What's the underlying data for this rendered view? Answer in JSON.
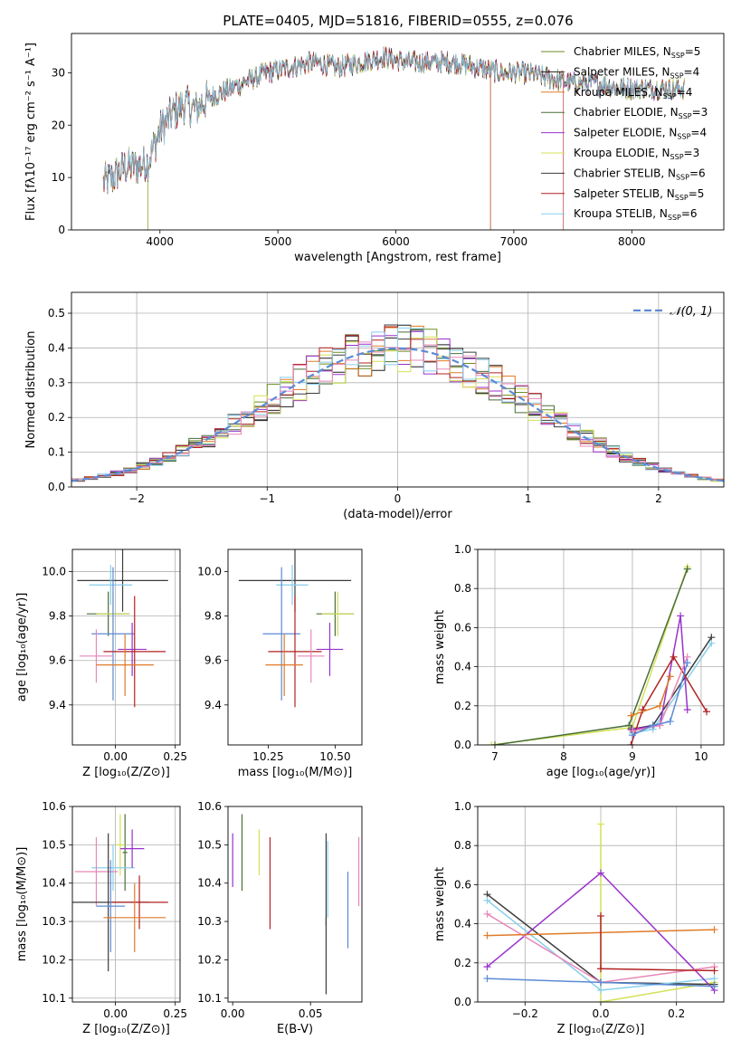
{
  "figure_title": "PLATE=0405, MJD=51816, FIBERID=0555, z=0.076",
  "models": [
    {
      "name": "Chabrier MILES",
      "n": "5",
      "color": "#6b8e23"
    },
    {
      "name": "Salpeter MILES",
      "n": "4",
      "color": "#1f1f1f"
    },
    {
      "name": "Kroupa MILES",
      "n": "4",
      "color": "#e07b28"
    },
    {
      "name": "Chabrier ELODIE",
      "n": "3",
      "color": "#4a6f3a"
    },
    {
      "name": "Salpeter ELODIE",
      "n": "4",
      "color": "#9932cc"
    },
    {
      "name": "Kroupa ELODIE",
      "n": "3",
      "color": "#d4e157"
    },
    {
      "name": "Chabrier STELIB",
      "n": "6",
      "color": "#3c3c3c"
    },
    {
      "name": "Salpeter STELIB",
      "n": "5",
      "color": "#b22222"
    },
    {
      "name": "Kroupa STELIB",
      "n": "6",
      "color": "#87ceeb"
    }
  ],
  "chart_data": [
    {
      "id": "spectrum",
      "type": "line",
      "xlabel": "wavelength [Angstrom, rest frame]",
      "ylabel": "Flux [fλ10⁻¹⁷ erg cm⁻² s⁻¹ A⁻¹]",
      "xlim": [
        3250,
        8780
      ],
      "ylim": [
        0,
        37.5
      ],
      "xticks": [
        4000,
        5000,
        6000,
        7000,
        8000
      ],
      "yticks": [
        0,
        10,
        20,
        30
      ],
      "continuum": {
        "x": [
          3520,
          3600,
          3700,
          3800,
          3900,
          4000,
          4100,
          4200,
          4300,
          4400,
          4500,
          4700,
          4900,
          5100,
          5300,
          5500,
          5700,
          5900,
          6100,
          6300,
          6500,
          6700,
          6900,
          7100,
          7300,
          7500,
          7700,
          7900,
          8100,
          8300,
          8450
        ],
        "y": [
          9,
          10,
          12,
          12,
          13,
          19,
          22,
          24,
          23,
          25,
          26,
          28,
          30,
          31,
          32,
          31,
          32,
          33,
          32,
          32,
          32,
          31,
          30,
          30,
          29,
          28,
          28,
          27,
          27,
          27,
          27
        ]
      },
      "noise_amplitude": {
        "blue": 3.5,
        "red": 1.8
      },
      "dropouts": [
        {
          "model": "Salpeter MILES",
          "x": 3900
        },
        {
          "model": "Kroupa ELODIE",
          "x": 3900
        },
        {
          "model": "Salpeter STELIB",
          "x": 6800
        },
        {
          "model": "Kroupa ELODIE",
          "x": 6800
        },
        {
          "model": "Salpeter STELIB",
          "x": 7420
        }
      ],
      "legend_location": "upper right"
    },
    {
      "id": "residuals",
      "type": "step",
      "xlabel": "(data-model)/error",
      "ylabel": "Normed distribution",
      "xlim": [
        -2.5,
        2.5
      ],
      "ylim": [
        0,
        0.56
      ],
      "xticks": [
        -2,
        -1,
        0,
        1,
        2
      ],
      "yticks": [
        0.0,
        0.1,
        0.2,
        0.3,
        0.4,
        0.5
      ],
      "reference_label": "𝒩(0, 1)",
      "reference_color": "#5b8bd6",
      "bin_width": 0.1,
      "legend_location": "upper right"
    },
    {
      "id": "age-vs-Z",
      "type": "errorbar",
      "xlabel": "Z [log₁₀(Z/Z⊙)]",
      "ylabel": "age  [log₁₀(age/yr)]",
      "xlim": [
        -0.18,
        0.27
      ],
      "ylim": [
        9.22,
        10.1
      ],
      "xticks": [
        0.0,
        0.25
      ],
      "yticks": [
        9.4,
        9.6,
        9.8,
        10.0
      ],
      "points": [
        {
          "color": "#3c3c3c",
          "x": 0.03,
          "xerr": 0.19,
          "y": 9.96,
          "yerr": 0.14
        },
        {
          "color": "#87ceeb",
          "x": -0.02,
          "xerr": 0.09,
          "y": 9.94,
          "yerr": 0.09
        },
        {
          "color": "#4a6f3a",
          "x": -0.03,
          "xerr": 0.09,
          "y": 9.81,
          "yerr": 0.1
        },
        {
          "color": "#d4e157",
          "x": -0.01,
          "xerr": 0.07,
          "y": 9.81,
          "yerr": 0.1
        },
        {
          "color": "#5b8bd6",
          "x": -0.01,
          "xerr": 0.09,
          "y": 9.72,
          "yerr": 0.3
        },
        {
          "color": "#9932cc",
          "x": 0.07,
          "xerr": 0.06,
          "y": 9.65,
          "yerr": 0.12
        },
        {
          "color": "#b22222",
          "x": 0.08,
          "xerr": 0.13,
          "y": 9.64,
          "yerr": 0.25
        },
        {
          "color": "#e887b8",
          "x": -0.08,
          "xerr": 0.07,
          "y": 9.62,
          "yerr": 0.12
        },
        {
          "color": "#e07b28",
          "x": 0.04,
          "xerr": 0.12,
          "y": 9.58,
          "yerr": 0.14
        }
      ]
    },
    {
      "id": "age-vs-mass",
      "type": "errorbar",
      "xlabel": "mass [log₁₀(M/M⊙)]",
      "ylabel": "",
      "xlim": [
        10.1,
        10.6
      ],
      "ylim": [
        9.22,
        10.1
      ],
      "xticks": [
        10.25,
        10.5
      ],
      "yticks": [
        9.4,
        9.6,
        9.8,
        10.0
      ],
      "points": [
        {
          "color": "#3c3c3c",
          "x": 10.35,
          "xerr": 0.21,
          "y": 9.96,
          "yerr": 0.14
        },
        {
          "color": "#87ceeb",
          "x": 10.34,
          "xerr": 0.06,
          "y": 9.94,
          "yerr": 0.09
        },
        {
          "color": "#4a6f3a",
          "x": 10.5,
          "xerr": 0.07,
          "y": 9.81,
          "yerr": 0.1
        },
        {
          "color": "#d4e157",
          "x": 10.51,
          "xerr": 0.06,
          "y": 9.81,
          "yerr": 0.1
        },
        {
          "color": "#5b8bd6",
          "x": 10.3,
          "xerr": 0.07,
          "y": 9.72,
          "yerr": 0.3
        },
        {
          "color": "#9932cc",
          "x": 10.48,
          "xerr": 0.05,
          "y": 9.65,
          "yerr": 0.12
        },
        {
          "color": "#b22222",
          "x": 10.35,
          "xerr": 0.1,
          "y": 9.64,
          "yerr": 0.25
        },
        {
          "color": "#e887b8",
          "x": 10.41,
          "xerr": 0.05,
          "y": 9.62,
          "yerr": 0.12
        },
        {
          "color": "#e07b28",
          "x": 10.31,
          "xerr": 0.07,
          "y": 9.58,
          "yerr": 0.14
        }
      ]
    },
    {
      "id": "weight-vs-age",
      "type": "line",
      "xlabel": "age  [log₁₀(age/yr)]",
      "ylabel": "mass weight",
      "xlim": [
        6.75,
        10.33
      ],
      "ylim": [
        0,
        1.0
      ],
      "xticks": [
        7,
        8,
        9,
        10
      ],
      "yticks": [
        0.0,
        0.2,
        0.4,
        0.6,
        0.8,
        1.0
      ],
      "series": [
        {
          "color": "#d4e157",
          "x": [
            6.95,
            9.0,
            9.8
          ],
          "y": [
            0.0,
            0.09,
            0.91
          ]
        },
        {
          "color": "#4a6f3a",
          "x": [
            7.0,
            8.95,
            9.8
          ],
          "y": [
            0.0,
            0.1,
            0.9
          ]
        },
        {
          "color": "#3c3c3c",
          "x": [
            8.98,
            9.3,
            10.15
          ],
          "y": [
            0.08,
            0.1,
            0.55
          ]
        },
        {
          "color": "#87ceeb",
          "x": [
            9.0,
            9.3,
            10.15
          ],
          "y": [
            0.06,
            0.08,
            0.52
          ]
        },
        {
          "color": "#9932cc",
          "x": [
            9.0,
            9.4,
            9.7,
            9.8
          ],
          "y": [
            0.08,
            0.1,
            0.66,
            0.18
          ]
        },
        {
          "color": "#b22222",
          "x": [
            8.98,
            9.15,
            9.6,
            10.08
          ],
          "y": [
            0.0,
            0.18,
            0.45,
            0.17
          ]
        },
        {
          "color": "#e07b28",
          "x": [
            8.98,
            9.4,
            9.55
          ],
          "y": [
            0.15,
            0.2,
            0.35
          ]
        },
        {
          "color": "#e887b8",
          "x": [
            9.0,
            9.4,
            9.8
          ],
          "y": [
            0.07,
            0.1,
            0.45
          ]
        },
        {
          "color": "#5b8bd6",
          "x": [
            9.0,
            9.3,
            9.55,
            9.8
          ],
          "y": [
            0.05,
            0.1,
            0.12,
            0.42
          ]
        }
      ]
    },
    {
      "id": "mass-vs-Z",
      "type": "errorbar",
      "xlabel": "Z [log₁₀(Z/Z⊙)]",
      "ylabel": "mass [log₁₀(M/M⊙)]",
      "xlim": [
        -0.18,
        0.27
      ],
      "ylim": [
        10.09,
        10.6
      ],
      "xticks": [
        0.0,
        0.25
      ],
      "yticks": [
        10.1,
        10.2,
        10.3,
        10.4,
        10.5,
        10.6
      ],
      "points": [
        {
          "color": "#4a6f3a",
          "x": 0.04,
          "xerr": 0.01,
          "y": 10.48,
          "yerr": 0.1
        },
        {
          "color": "#d4e157",
          "x": 0.02,
          "xerr": 0.02,
          "y": 10.5,
          "yerr": 0.08
        },
        {
          "color": "#87ceeb",
          "x": -0.01,
          "xerr": 0.09,
          "y": 10.44,
          "yerr": 0.06
        },
        {
          "color": "#e887b8",
          "x": -0.08,
          "xerr": 0.09,
          "y": 10.43,
          "yerr": 0.09
        },
        {
          "color": "#9932cc",
          "x": 0.07,
          "xerr": 0.05,
          "y": 10.49,
          "yerr": 0.05
        },
        {
          "color": "#3c3c3c",
          "x": -0.03,
          "xerr": 0.17,
          "y": 10.35,
          "yerr": 0.18
        },
        {
          "color": "#b22222",
          "x": 0.1,
          "xerr": 0.12,
          "y": 10.35,
          "yerr": 0.07
        },
        {
          "color": "#5b8bd6",
          "x": -0.02,
          "xerr": 0.06,
          "y": 10.34,
          "yerr": 0.12
        },
        {
          "color": "#e07b28",
          "x": 0.08,
          "xerr": 0.13,
          "y": 10.31,
          "yerr": 0.09
        }
      ]
    },
    {
      "id": "mass-vs-ebv",
      "type": "errorbar",
      "xlabel": "E(B-V)",
      "ylabel": "",
      "xlim": [
        -0.003,
        0.083
      ],
      "ylim": [
        10.09,
        10.6
      ],
      "xticks": [
        0.0,
        0.05
      ],
      "yticks": [
        10.1,
        10.2,
        10.3,
        10.4,
        10.5,
        10.6
      ],
      "points": [
        {
          "color": "#9932cc",
          "x": 0.0,
          "y": 10.46,
          "yerr": 0.07
        },
        {
          "color": "#4a6f3a",
          "x": 0.006,
          "y": 10.48,
          "yerr": 0.1
        },
        {
          "color": "#d4e157",
          "x": 0.017,
          "y": 10.48,
          "yerr": 0.06
        },
        {
          "color": "#b22222",
          "x": 0.024,
          "y": 10.4,
          "yerr": 0.12
        },
        {
          "color": "#3c3c3c",
          "x": 0.06,
          "y": 10.41,
          "yerr": 0.12
        },
        {
          "color": "#87ceeb",
          "x": 0.061,
          "y": 10.41,
          "yerr": 0.1
        },
        {
          "color": "#3c3c3c",
          "x": 0.06,
          "y": 10.21,
          "yerr": 0.1
        },
        {
          "color": "#5b8bd6",
          "x": 0.074,
          "y": 10.33,
          "yerr": 0.1
        },
        {
          "color": "#e887b8",
          "x": 0.081,
          "y": 10.43,
          "yerr": 0.09
        }
      ]
    },
    {
      "id": "weight-vs-Z",
      "type": "line",
      "xlabel": "Z [log₁₀(Z/Z⊙)]",
      "ylabel": "mass weight",
      "xlim": [
        -0.325,
        0.325
      ],
      "ylim": [
        0,
        1.0
      ],
      "xticks": [
        -0.2,
        0.0,
        0.2
      ],
      "yticks": [
        0.0,
        0.2,
        0.4,
        0.6,
        0.8,
        1.0
      ],
      "series": [
        {
          "color": "#d4e157",
          "x": [
            0.0,
            0.0,
            0.3
          ],
          "y": [
            0.91,
            0.0,
            0.1
          ]
        },
        {
          "color": "#3c3c3c",
          "x": [
            -0.3,
            0.0,
            0.3
          ],
          "y": [
            0.55,
            0.1,
            0.09
          ]
        },
        {
          "color": "#87ceeb",
          "x": [
            -0.3,
            0.0,
            0.3
          ],
          "y": [
            0.52,
            0.06,
            0.12
          ]
        },
        {
          "color": "#9932cc",
          "x": [
            -0.3,
            0.0,
            0.3
          ],
          "y": [
            0.18,
            0.66,
            0.06
          ]
        },
        {
          "color": "#e887b8",
          "x": [
            -0.3,
            0.0,
            0.3
          ],
          "y": [
            0.45,
            0.1,
            0.18
          ]
        },
        {
          "color": "#e07b28",
          "x": [
            -0.3,
            0.3
          ],
          "y": [
            0.34,
            0.37
          ]
        },
        {
          "color": "#b22222",
          "x": [
            0.0,
            0.0,
            0.3
          ],
          "y": [
            0.44,
            0.17,
            0.16
          ]
        },
        {
          "color": "#5b8bd6",
          "x": [
            -0.3,
            0.0,
            0.3
          ],
          "y": [
            0.12,
            0.1,
            0.08
          ]
        }
      ]
    }
  ]
}
